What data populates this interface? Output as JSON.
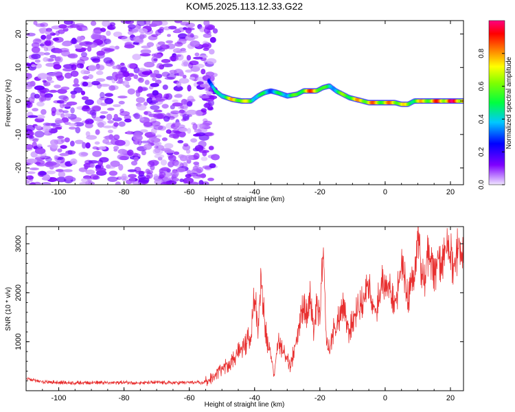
{
  "figure_title": "KOM5.2025.113.12.33.G22",
  "chart_data": [
    {
      "type": "heatmap",
      "panel": "top",
      "title": "KOM5.2025.113.12.33.G22",
      "xlabel": "Height of straight line (km)",
      "ylabel": "Frequency (Hz)",
      "xlim": [
        -110,
        24
      ],
      "ylim": [
        -25,
        24
      ],
      "xticks": [
        -100,
        -80,
        -60,
        -40,
        -20,
        0,
        20
      ],
      "yticks": [
        -20,
        -10,
        0,
        10,
        20
      ],
      "noise_region_x": [
        -110,
        -52
      ],
      "noise_amplitude_range": [
        0.03,
        0.15
      ],
      "ridge": {
        "x": [
          -54,
          -52,
          -50,
          -47,
          -44,
          -41,
          -39,
          -37,
          -35,
          -33,
          -30,
          -27,
          -25,
          -23,
          -21,
          -19,
          -17,
          -15,
          -13,
          -11,
          -9,
          -7,
          -5,
          -3,
          -1,
          1,
          3,
          5,
          7,
          9,
          11,
          13,
          15,
          17,
          20,
          24
        ],
        "frequency": [
          6,
          3,
          1.5,
          0.5,
          0,
          0,
          1.5,
          2.5,
          3,
          2.5,
          1.5,
          2,
          3,
          3,
          3,
          4,
          4.5,
          3,
          2,
          1,
          0.5,
          0,
          -0.5,
          -0.5,
          -0.5,
          -0.5,
          -0.5,
          -1,
          -1,
          0,
          0,
          0,
          0,
          0,
          0,
          0
        ],
        "amplitude": [
          0.35,
          0.45,
          0.6,
          0.8,
          0.85,
          0.6,
          0.55,
          0.5,
          0.45,
          0.5,
          0.55,
          0.6,
          0.8,
          0.9,
          0.95,
          0.6,
          0.5,
          0.55,
          0.65,
          0.75,
          0.8,
          0.85,
          0.9,
          0.85,
          0.8,
          0.85,
          0.9,
          0.8,
          0.7,
          0.7,
          0.8,
          0.85,
          0.9,
          0.95,
          1.0,
          1.0
        ]
      },
      "colorbar": {
        "label": "Normalized spectral amplitude",
        "range": [
          0,
          1
        ],
        "ticks": [
          "0.0",
          "0.2",
          "0.4",
          "0.6",
          "0.8"
        ],
        "colors": [
          "#e8d8ff",
          "#7f00ff",
          "#0000ff",
          "#00ffff",
          "#00ff00",
          "#ffff00",
          "#ff8000",
          "#ff0000",
          "#ff0080"
        ]
      }
    },
    {
      "type": "line",
      "panel": "bottom",
      "xlabel": "Height of straight line (km)",
      "ylabel": "SNR (10 * v/v)",
      "xlim": [
        -110,
        24
      ],
      "ylim": [
        0,
        3350
      ],
      "xticks": [
        -100,
        -80,
        -60,
        -40,
        -20,
        0,
        20
      ],
      "yticks": [
        1000,
        2000,
        3000
      ],
      "color": "#e83030",
      "x": [
        -110,
        -105,
        -100,
        -95,
        -90,
        -85,
        -80,
        -75,
        -70,
        -65,
        -60,
        -56,
        -53,
        -51,
        -49,
        -47,
        -45,
        -43,
        -41,
        -40,
        -39,
        -38,
        -37,
        -36,
        -35,
        -34,
        -33,
        -31,
        -29,
        -27,
        -25,
        -24,
        -23,
        -22,
        -21,
        -20,
        -19,
        -18,
        -17,
        -16,
        -15,
        -13,
        -11,
        -9,
        -7,
        -5,
        -3,
        -1,
        1,
        3,
        5,
        7,
        9,
        10,
        11,
        12,
        13,
        15,
        17,
        19,
        21,
        23,
        24
      ],
      "y": [
        250,
        180,
        170,
        160,
        170,
        160,
        170,
        160,
        170,
        160,
        170,
        160,
        250,
        400,
        500,
        600,
        800,
        900,
        1200,
        2000,
        1300,
        2300,
        1500,
        900,
        700,
        300,
        1000,
        800,
        500,
        1100,
        1800,
        1500,
        1900,
        1200,
        1700,
        1500,
        2800,
        1000,
        800,
        1200,
        1300,
        1700,
        1200,
        1600,
        1800,
        2200,
        1600,
        2200,
        2100,
        1700,
        2600,
        1900,
        2300,
        3200,
        2500,
        2200,
        2800,
        2400,
        2700,
        2900,
        2600,
        3000,
        2900
      ]
    }
  ]
}
